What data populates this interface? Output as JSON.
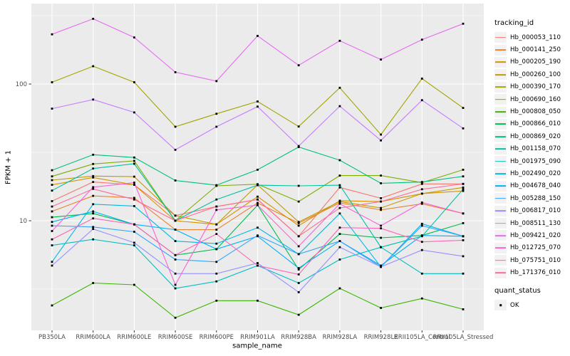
{
  "style": {
    "panel_bg": "#EBEBEB",
    "grid_color": "#FFFFFF",
    "tick_text_color": "#4D4D4D",
    "tick_mark_color": "#333333",
    "point_color": "#000000",
    "legend_key_bg": "#F2F2F2"
  },
  "axes": {
    "x_title": "sample_name",
    "y_title": "FPKM + 1",
    "y_ticks": [
      {
        "label": "100",
        "value": 100
      },
      {
        "label": "10",
        "value": 10
      }
    ],
    "y_minor_values": [
      316.2,
      31.62,
      3.162
    ]
  },
  "legend": {
    "tracking_title": "tracking_id",
    "quant_title": "quant_status",
    "quant_items": [
      {
        "label": "OK"
      }
    ]
  },
  "chart_data": {
    "type": "line",
    "title": "",
    "xlabel": "sample_name",
    "ylabel": "FPKM + 1",
    "y_scale": "log10",
    "ylim": [
      1.58,
      387
    ],
    "grid": true,
    "legend_position": "right",
    "point_shape": "filled-black-square",
    "quant_status": "OK",
    "categories": [
      "PB350LA",
      "RRIM600LA",
      "RRIM600LE",
      "RRIM600SE",
      "RRIM600PE",
      "RRIM901LA",
      "RRIM928BA",
      "RRIM928LA",
      "RRIM928LE",
      "RRII105LA_Control",
      "RRII105LA_Stressed"
    ],
    "series": [
      {
        "name": "Hb_000053_110",
        "color": "#F8766D",
        "values": [
          13.9,
          19.2,
          18.3,
          10.9,
          12.7,
          14.3,
          7.7,
          17.5,
          14.6,
          18.6,
          18.6
        ]
      },
      {
        "name": "Hb_000141_250",
        "color": "#EA8331",
        "values": [
          11.7,
          15.2,
          14.7,
          8.6,
          8.6,
          13.5,
          9.6,
          13.5,
          12.0,
          13.3,
          11.3
        ]
      },
      {
        "name": "Hb_000205_190",
        "color": "#D89000",
        "values": [
          18.3,
          20.7,
          18.3,
          10.0,
          9.4,
          15.0,
          9.2,
          14.0,
          13.8,
          15.8,
          16.5
        ]
      },
      {
        "name": "Hb_000260_100",
        "color": "#C09B00",
        "values": [
          19.8,
          21.2,
          21.0,
          10.9,
          9.4,
          18.3,
          9.8,
          13.8,
          12.4,
          15.8,
          17.5
        ]
      },
      {
        "name": "Hb_000390_170",
        "color": "#A3A500",
        "values": [
          103,
          135,
          103,
          48.7,
          60.6,
          74.5,
          48.9,
          93.8,
          42.7,
          109.5,
          66.8
        ]
      },
      {
        "name": "Hb_000690_160",
        "color": "#7CAE00",
        "values": [
          21.1,
          26.0,
          27.4,
          10.0,
          18.0,
          18.5,
          13.8,
          21.4,
          21.4,
          19.0,
          23.6
        ]
      },
      {
        "name": "Hb_000808_050",
        "color": "#39B600",
        "values": [
          2.4,
          3.5,
          3.4,
          1.95,
          2.6,
          2.6,
          2.05,
          3.2,
          2.3,
          2.7,
          2.25
        ]
      },
      {
        "name": "Hb_000866_010",
        "color": "#00BB4E",
        "values": [
          10.6,
          11.3,
          9.4,
          5.6,
          6.2,
          13.0,
          4.4,
          8.0,
          7.5,
          7.8,
          9.6
        ]
      },
      {
        "name": "Hb_000869_020",
        "color": "#00BF7D",
        "values": [
          23.4,
          30.4,
          29.0,
          19.7,
          18.2,
          23.6,
          34.6,
          27.7,
          18.8,
          19.2,
          21.1
        ]
      },
      {
        "name": "Hb_001158_070",
        "color": "#00C1A3",
        "values": [
          16.6,
          24.1,
          26.1,
          10.0,
          14.3,
          18.2,
          18.0,
          18.2,
          6.4,
          7.7,
          17.0
        ]
      },
      {
        "name": "Hb_001975_090",
        "color": "#00BFC4",
        "values": [
          6.6,
          7.3,
          6.6,
          3.2,
          3.6,
          4.7,
          3.5,
          5.2,
          6.4,
          4.1,
          4.1
        ]
      },
      {
        "name": "Hb_002490_020",
        "color": "#00BAE0",
        "values": [
          5.0,
          13.2,
          12.8,
          7.1,
          6.8,
          8.9,
          5.7,
          11.3,
          4.6,
          9.5,
          7.7
        ]
      },
      {
        "name": "Hb_004678_040",
        "color": "#00B0F6",
        "values": [
          9.8,
          11.7,
          9.4,
          8.6,
          6.2,
          7.7,
          4.5,
          7.1,
          4.7,
          7.8,
          7.7
        ]
      },
      {
        "name": "Hb_005288_150",
        "color": "#35A2FF",
        "values": [
          9.2,
          9.0,
          8.3,
          5.2,
          5.0,
          7.8,
          5.7,
          7.1,
          4.6,
          9.2,
          7.7
        ]
      },
      {
        "name": "Hb_006817_010",
        "color": "#9590FF",
        "values": [
          4.7,
          8.7,
          6.9,
          4.1,
          4.1,
          4.9,
          3.0,
          6.4,
          4.6,
          6.1,
          5.5
        ]
      },
      {
        "name": "Hb_008511_130",
        "color": "#C77CFF",
        "values": [
          66,
          77,
          62,
          33,
          48.7,
          68.4,
          35.2,
          68.9,
          38.7,
          76.2,
          47.4
        ]
      },
      {
        "name": "Hb_009421_020",
        "color": "#E76BF3",
        "values": [
          231,
          300,
          219,
          122,
          105,
          225,
          137,
          207,
          151,
          211,
          276
        ]
      },
      {
        "name": "Hb_012725_070",
        "color": "#FA62DB",
        "values": [
          8.4,
          17.6,
          19.0,
          3.4,
          12.0,
          13.0,
          6.5,
          13.3,
          9.2,
          13.6,
          11.3
        ]
      },
      {
        "name": "Hb_075751_010",
        "color": "#FF62BC",
        "values": [
          7.3,
          10.4,
          9.4,
          5.6,
          8.0,
          4.7,
          4.05,
          8.9,
          8.8,
          7.0,
          7.2
        ]
      },
      {
        "name": "Hb_171376_010",
        "color": "#FF6A98",
        "values": [
          12.7,
          17.1,
          14.3,
          10.0,
          12.7,
          14.3,
          7.7,
          12.4,
          13.8,
          17.0,
          18.6
        ]
      }
    ]
  }
}
